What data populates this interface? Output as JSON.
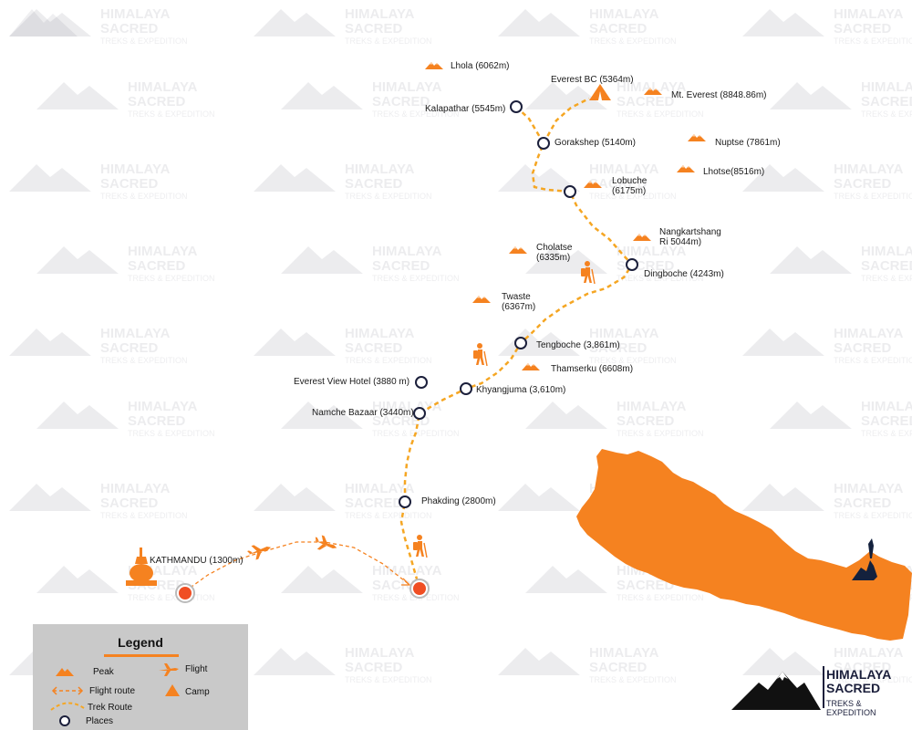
{
  "places": {
    "kalapathar": "Kalapathar (5545m)",
    "gorakshep": "Gorakshep (5140m)",
    "lobuche_1": "Lobuche",
    "lobuche_2": "(6175m)",
    "dingboche": "Dingboche (4243m)",
    "tengboche": "Tengboche (3,861m)",
    "everest_view_hotel": "Everest View Hotel (3880 m)",
    "khyangjuma": "Khyangjuma (3,610m)",
    "namche_bazaar": "Namche Bazaar (3440m)",
    "phakding": "Phakding (2800m)",
    "kathmandu": "KATHMANDU (1300m)"
  },
  "peaks": {
    "lhola": "Lhola (6062m)",
    "everest_bc": "Everest BC (5364m)",
    "mt_everest": "Mt. Everest (8848.86m)",
    "nuptse": "Nuptse (7861m)",
    "lhotse": "Lhotse(8516m)",
    "nangkartshang_1": "Nangkartshang",
    "nangkartshang_2": "Ri 5044m)",
    "cholatse_1": "Cholatse",
    "cholatse_2": "(6335m)",
    "twaste_1": "Twaste",
    "twaste_2": "(6367m)",
    "thamserku": "Thamserku (6608m)"
  },
  "legend": {
    "title": "Legend",
    "peak": "Peak",
    "flight": "Flight",
    "flight_route": "Flight route",
    "camp": "Camp",
    "trek_route": "Trek Route",
    "places": "Places"
  },
  "brand": {
    "line1": "HIMALAYA",
    "line2": "SACRED",
    "line3": "TREKS & EXPEDITION"
  },
  "watermark": {
    "line1": "HIMALAYA",
    "line2": "SACRED",
    "line3": "TREKS & EXPEDITION"
  },
  "colors": {
    "accent": "#f58220",
    "route": "#f5a623",
    "place_ring": "#1b1f3b",
    "text": "#1a1a1a",
    "legend_bg": "#c9c9c9"
  }
}
